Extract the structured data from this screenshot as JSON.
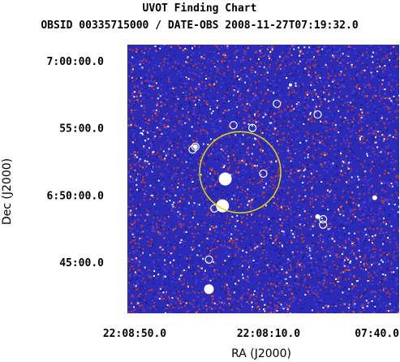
{
  "chart_data": {
    "type": "finding-chart",
    "title": "UVOT Finding Chart",
    "subtitle": "OBSID 00335715000 / DATE-OBS 2008-11-27T07:19:32.0",
    "xlabel": "RA (J2000)",
    "ylabel": "Dec (J2000)",
    "x_ticks": [
      "22:08:50.0",
      "22:08:10.0",
      "07:40.0"
    ],
    "y_ticks": [
      "7:00:00.0",
      "55:00.0",
      "6:50:00.0",
      "45:00.0"
    ],
    "image_colors": {
      "background": "#2b2bb8",
      "noise": [
        "#4a3fd6",
        "#1f1f8f",
        "#c23a3a",
        "#e8e8ff",
        "#ff6a3a",
        "#ffffff"
      ]
    },
    "target_circle_color": "#e6d800",
    "source_circle_color": "#ffffff"
  }
}
